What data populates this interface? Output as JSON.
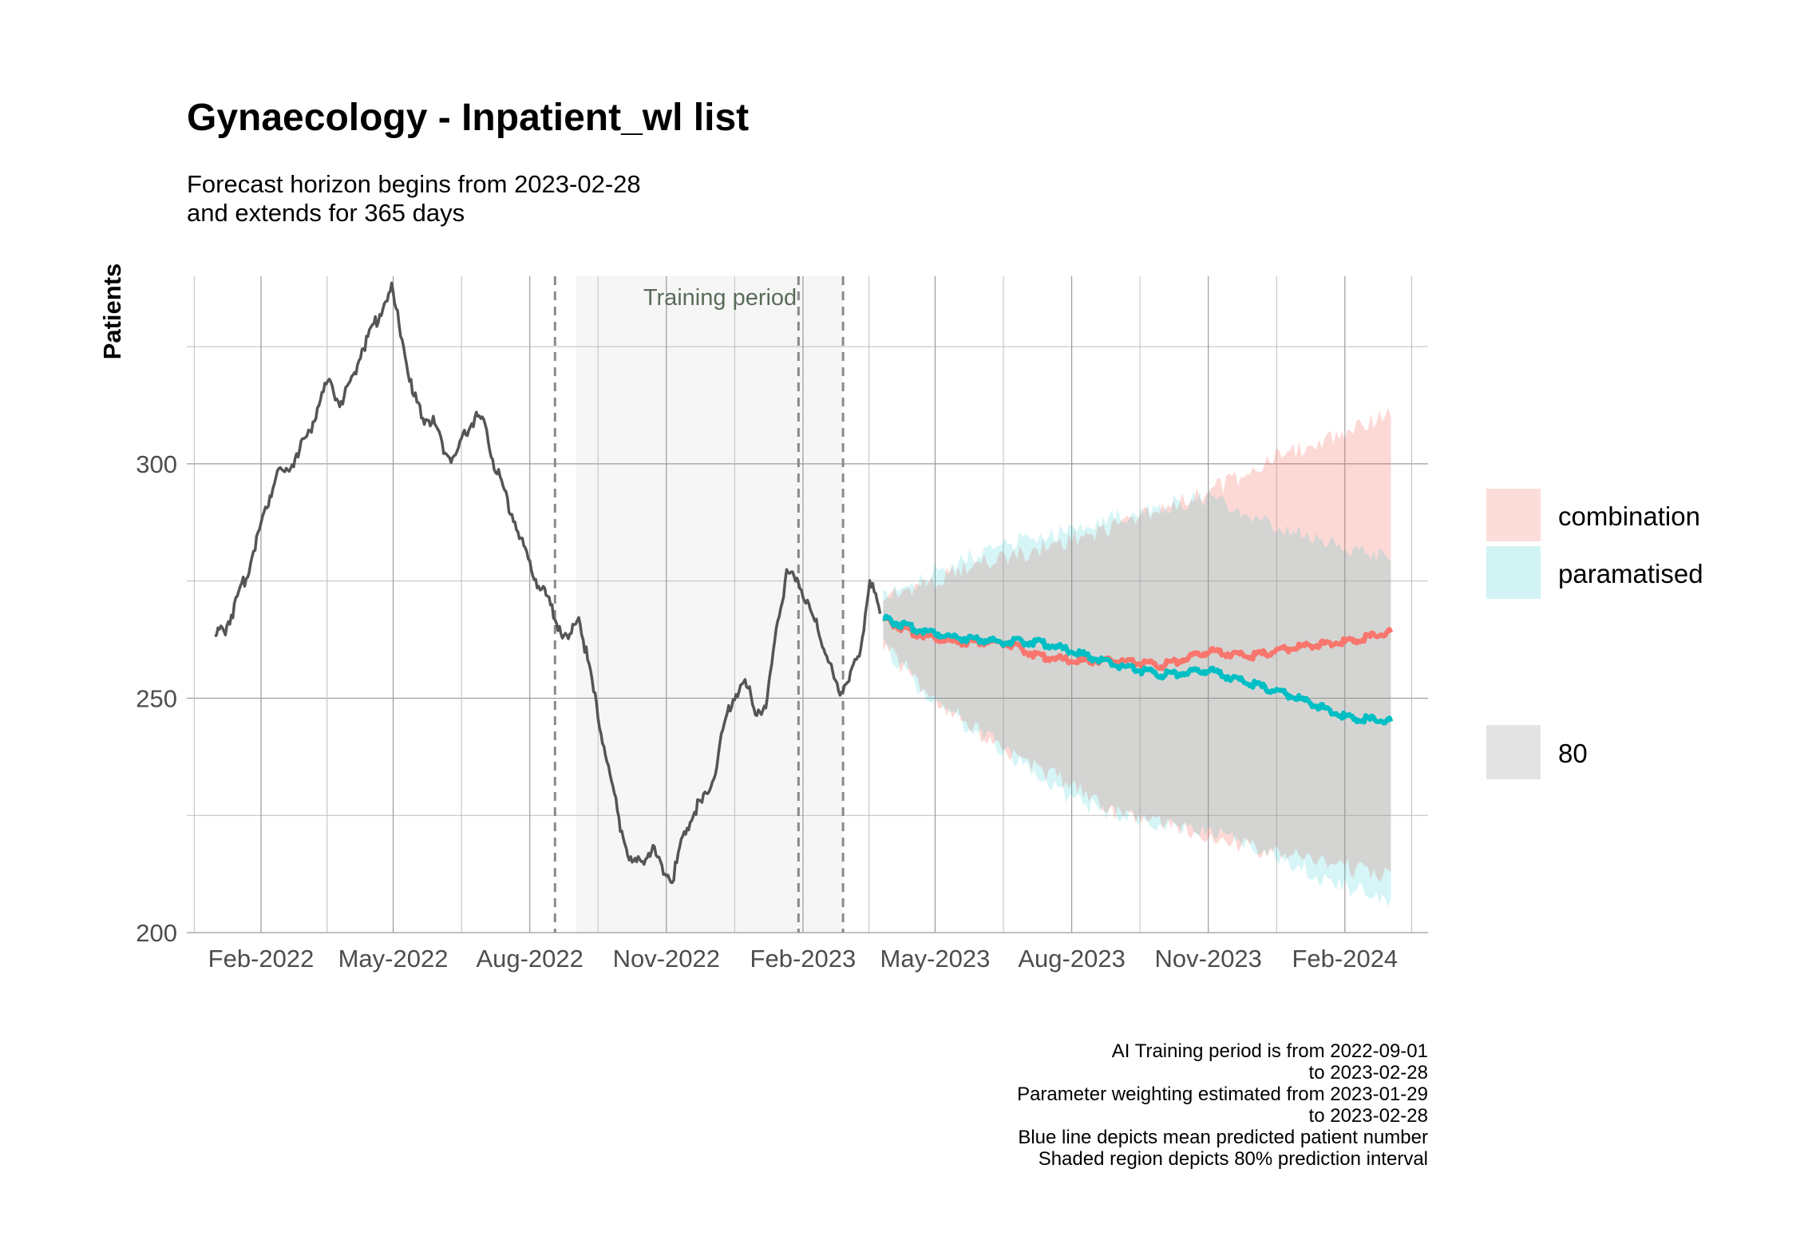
{
  "title": "Gynaecology - Inpatient_wl list",
  "subtitle_lines": [
    "Forecast horizon begins from 2023-02-28",
    "and extends for 365 days"
  ],
  "ylabel": "Patients",
  "training_label": "Training period",
  "legend": {
    "items": [
      {
        "label": "combination",
        "color": "#F8766D"
      },
      {
        "label": "paramatised",
        "color": "#00BFC4"
      }
    ],
    "interval_label": "80"
  },
  "caption_lines": [
    "AI Training period is from 2022-09-01",
    "to 2023-02-28",
    "Parameter weighting estimated from 2023-01-29",
    "to 2023-02-28",
    "Blue line depicts mean predicted patient number",
    "Shaded region depicts 80% prediction interval"
  ],
  "chart_data": {
    "type": "line",
    "x_type": "date",
    "xlim": [
      "2021-12-13",
      "2024-03-28"
    ],
    "ylim": [
      200,
      340
    ],
    "x_ticks": [
      {
        "date": "2022-02-01",
        "label": "Feb-2022"
      },
      {
        "date": "2022-05-01",
        "label": "May-2022"
      },
      {
        "date": "2022-08-01",
        "label": "Aug-2022"
      },
      {
        "date": "2022-11-01",
        "label": "Nov-2022"
      },
      {
        "date": "2023-02-01",
        "label": "Feb-2023"
      },
      {
        "date": "2023-05-01",
        "label": "May-2023"
      },
      {
        "date": "2023-08-01",
        "label": "Aug-2023"
      },
      {
        "date": "2023-11-01",
        "label": "Nov-2023"
      },
      {
        "date": "2024-02-01",
        "label": "Feb-2024"
      }
    ],
    "y_ticks": [
      200,
      250,
      300
    ],
    "y_minor": [
      225,
      275,
      325
    ],
    "grid": true,
    "training_period": {
      "start": "2022-09-01",
      "end": "2023-02-28"
    },
    "vlines": [
      "2022-08-18",
      "2023-01-29",
      "2023-02-28"
    ],
    "legend_position": "right",
    "series": [
      {
        "name": "observed",
        "color": "#555555",
        "points": [
          [
            "2022-01-01",
            263
          ],
          [
            "2022-01-08",
            265
          ],
          [
            "2022-01-15",
            270
          ],
          [
            "2022-01-22",
            276
          ],
          [
            "2022-01-29",
            284
          ],
          [
            "2022-02-05",
            291
          ],
          [
            "2022-02-12",
            299
          ],
          [
            "2022-02-19",
            298
          ],
          [
            "2022-02-26",
            303
          ],
          [
            "2022-03-05",
            306
          ],
          [
            "2022-03-12",
            313
          ],
          [
            "2022-03-19",
            318
          ],
          [
            "2022-03-26",
            313
          ],
          [
            "2022-04-02",
            316
          ],
          [
            "2022-04-09",
            324
          ],
          [
            "2022-04-16",
            328
          ],
          [
            "2022-04-23",
            333
          ],
          [
            "2022-04-30",
            337
          ],
          [
            "2022-05-07",
            327
          ],
          [
            "2022-05-14",
            315
          ],
          [
            "2022-05-21",
            310
          ],
          [
            "2022-05-28",
            309
          ],
          [
            "2022-06-04",
            303
          ],
          [
            "2022-06-11",
            301
          ],
          [
            "2022-06-18",
            306
          ],
          [
            "2022-06-25",
            310
          ],
          [
            "2022-07-02",
            308
          ],
          [
            "2022-07-09",
            299
          ],
          [
            "2022-07-16",
            293
          ],
          [
            "2022-07-23",
            287
          ],
          [
            "2022-07-30",
            280
          ],
          [
            "2022-08-06",
            275
          ],
          [
            "2022-08-13",
            271
          ],
          [
            "2022-08-20",
            266
          ],
          [
            "2022-08-27",
            262
          ],
          [
            "2022-09-03",
            268
          ],
          [
            "2022-09-10",
            256
          ],
          [
            "2022-09-17",
            245
          ],
          [
            "2022-09-24",
            233
          ],
          [
            "2022-10-01",
            223
          ],
          [
            "2022-10-08",
            215
          ],
          [
            "2022-10-15",
            215
          ],
          [
            "2022-10-22",
            218
          ],
          [
            "2022-10-29",
            214
          ],
          [
            "2022-11-05",
            211
          ],
          [
            "2022-11-12",
            220
          ],
          [
            "2022-11-19",
            226
          ],
          [
            "2022-11-26",
            228
          ],
          [
            "2022-12-03",
            233
          ],
          [
            "2022-12-10",
            244
          ],
          [
            "2022-12-17",
            251
          ],
          [
            "2022-12-24",
            253
          ],
          [
            "2022-12-31",
            248
          ],
          [
            "2023-01-07",
            247
          ],
          [
            "2023-01-14",
            265
          ],
          [
            "2023-01-21",
            276
          ],
          [
            "2023-01-28",
            276
          ],
          [
            "2023-02-04",
            270
          ],
          [
            "2023-02-11",
            265
          ],
          [
            "2023-02-18",
            258
          ],
          [
            "2023-02-25",
            251
          ],
          [
            "2023-03-04",
            255
          ],
          [
            "2023-03-11",
            258
          ],
          [
            "2023-03-18",
            276
          ],
          [
            "2023-03-25",
            268
          ]
        ]
      },
      {
        "name": "combination",
        "color": "#F8766D",
        "points": [
          [
            "2023-03-27",
            267
          ],
          [
            "2023-04-15",
            264
          ],
          [
            "2023-05-15",
            262
          ],
          [
            "2023-06-15",
            262
          ],
          [
            "2023-07-10",
            259
          ],
          [
            "2023-08-01",
            258
          ],
          [
            "2023-09-01",
            258
          ],
          [
            "2023-10-01",
            257
          ],
          [
            "2023-11-01",
            260
          ],
          [
            "2023-12-01",
            259
          ],
          [
            "2024-01-01",
            261
          ],
          [
            "2024-02-01",
            262
          ],
          [
            "2024-03-03",
            264
          ]
        ],
        "interval_80": [
          [
            "2023-03-27",
            262,
            271
          ],
          [
            "2023-05-01",
            251,
            274
          ],
          [
            "2023-06-01",
            243,
            278
          ],
          [
            "2023-07-01",
            237,
            280
          ],
          [
            "2023-08-01",
            233,
            283
          ],
          [
            "2023-09-01",
            226,
            286
          ],
          [
            "2023-10-01",
            224,
            290
          ],
          [
            "2023-11-01",
            222,
            293
          ],
          [
            "2023-12-01",
            219,
            298
          ],
          [
            "2024-01-01",
            217,
            302
          ],
          [
            "2024-02-01",
            215,
            306
          ],
          [
            "2024-03-03",
            213,
            310
          ]
        ]
      },
      {
        "name": "paramatised",
        "color": "#00BFC4",
        "points": [
          [
            "2023-03-27",
            267
          ],
          [
            "2023-04-15",
            265
          ],
          [
            "2023-05-15",
            263
          ],
          [
            "2023-06-15",
            262
          ],
          [
            "2023-07-10",
            262
          ],
          [
            "2023-08-01",
            260
          ],
          [
            "2023-09-01",
            257
          ],
          [
            "2023-10-01",
            255
          ],
          [
            "2023-11-01",
            256
          ],
          [
            "2023-12-01",
            253
          ],
          [
            "2024-01-01",
            250
          ],
          [
            "2024-02-01",
            246
          ],
          [
            "2024-03-03",
            245
          ]
        ],
        "interval_80": [
          [
            "2023-03-27",
            262,
            270
          ],
          [
            "2023-05-01",
            249,
            276
          ],
          [
            "2023-06-01",
            244,
            280
          ],
          [
            "2023-07-01",
            236,
            283
          ],
          [
            "2023-08-01",
            229,
            285
          ],
          [
            "2023-09-01",
            226,
            288
          ],
          [
            "2023-10-01",
            224,
            290
          ],
          [
            "2023-11-01",
            223,
            292
          ],
          [
            "2023-12-01",
            219,
            287
          ],
          [
            "2024-01-01",
            215,
            284
          ],
          [
            "2024-02-01",
            211,
            281
          ],
          [
            "2024-03-03",
            207,
            279
          ]
        ]
      }
    ]
  }
}
